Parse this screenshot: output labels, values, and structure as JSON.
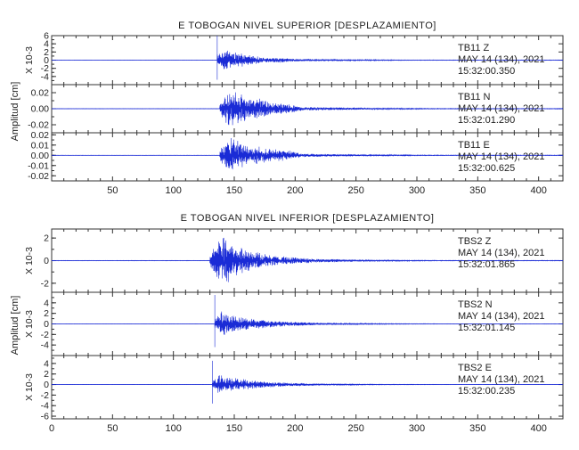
{
  "chart_data": [
    {
      "type": "line",
      "title": "E TOBOGAN NIVEL SUPERIOR [DESPLAZAMIENTO]",
      "ylabel": "Amplitud [cm]",
      "xlim": [
        0,
        420
      ],
      "x_ticks": [
        "50",
        "100",
        "150",
        "200",
        "250",
        "300",
        "350",
        "400"
      ],
      "x_tick_values": [
        50,
        100,
        150,
        200,
        250,
        300,
        350,
        400
      ],
      "traces": [
        {
          "station": "TB11",
          "component": "Z",
          "date": "MAY 14 (134), 2021",
          "time": "15:32:00.350",
          "y_multiplier": "X 10-3",
          "ylim": [
            -6,
            6
          ],
          "y_ticks": [
            "6",
            "4",
            "2",
            "0",
            "-2",
            "-4"
          ],
          "y_tick_values": [
            6,
            4,
            2,
            0,
            -2,
            -4
          ],
          "onset": 136,
          "peak": 2.8,
          "spike": 6.0,
          "decay": [
            [
              136,
              0.55
            ],
            [
              142,
              1.0
            ],
            [
              150,
              0.7
            ],
            [
              160,
              0.55
            ],
            [
              175,
              0.2
            ],
            [
              190,
              0.22
            ],
            [
              200,
              0.1
            ],
            [
              250,
              0.05
            ],
            [
              300,
              0.02
            ]
          ]
        },
        {
          "station": "TB11",
          "component": "N",
          "date": "MAY 14 (134), 2021",
          "time": "15:32:01.290",
          "y_multiplier": "",
          "ylim": [
            -0.03,
            0.03
          ],
          "y_ticks": [
            "0.02",
            "0.00",
            "-0.02"
          ],
          "y_tick_values": [
            0.02,
            0.0,
            -0.02
          ],
          "onset": 138,
          "peak": 0.025,
          "spike": 0.0,
          "decay": [
            [
              138,
              0.3
            ],
            [
              146,
              1.0
            ],
            [
              155,
              0.8
            ],
            [
              162,
              0.5
            ],
            [
              170,
              0.55
            ],
            [
              180,
              0.3
            ],
            [
              195,
              0.25
            ],
            [
              205,
              0.1
            ],
            [
              260,
              0.04
            ],
            [
              320,
              0.015
            ]
          ]
        },
        {
          "station": "TB11",
          "component": "E",
          "date": "MAY 14 (134), 2021",
          "time": "15:32:00.625",
          "y_multiplier": "",
          "ylim": [
            -0.025,
            0.022
          ],
          "y_ticks": [
            "0.02",
            "0.01",
            "0.00",
            "-0.01",
            "-0.02"
          ],
          "y_tick_values": [
            0.02,
            0.01,
            0.0,
            -0.01,
            -0.02
          ],
          "onset": 138,
          "peak": 0.018,
          "spike": 0.0,
          "decay": [
            [
              138,
              0.3
            ],
            [
              146,
              1.0
            ],
            [
              155,
              0.85
            ],
            [
              162,
              0.4
            ],
            [
              170,
              0.5
            ],
            [
              180,
              0.35
            ],
            [
              195,
              0.3
            ],
            [
              205,
              0.1
            ],
            [
              260,
              0.04
            ],
            [
              320,
              0.015
            ]
          ]
        }
      ]
    },
    {
      "type": "line",
      "title": "E TOBOGAN NIVEL INFERIOR [DESPLAZAMIENTO]",
      "ylabel": "Amplitud [cm]",
      "xlim": [
        0,
        420
      ],
      "x_ticks": [
        "0",
        "50",
        "100",
        "150",
        "200",
        "250",
        "300",
        "350",
        "400"
      ],
      "x_tick_values": [
        0,
        50,
        100,
        150,
        200,
        250,
        300,
        350,
        400
      ],
      "traces": [
        {
          "station": "TBS2",
          "component": "Z",
          "date": "MAY 14 (134), 2021",
          "time": "15:32:01.865",
          "y_multiplier": "X 10-3",
          "ylim": [
            -2.8,
            2.8
          ],
          "y_ticks": [
            "2",
            "0",
            "-2"
          ],
          "y_tick_values": [
            2,
            0,
            -2
          ],
          "onset": 130,
          "peak": 2.3,
          "spike": 0.0,
          "decay": [
            [
              130,
              0.25
            ],
            [
              136,
              0.9
            ],
            [
              142,
              1.0
            ],
            [
              150,
              0.6
            ],
            [
              165,
              0.35
            ],
            [
              185,
              0.2
            ],
            [
              215,
              0.08
            ],
            [
              260,
              0.03
            ],
            [
              320,
              0.012
            ]
          ]
        },
        {
          "station": "TBS2",
          "component": "N",
          "date": "MAY 14 (134), 2021",
          "time": "15:32:01.145",
          "y_multiplier": "X 10-3",
          "ylim": [
            -6,
            6
          ],
          "y_ticks": [
            "4",
            "2",
            "0",
            "-2",
            "-4"
          ],
          "y_tick_values": [
            4,
            2,
            0,
            -2,
            -4
          ],
          "onset": 134,
          "peak": 2.6,
          "spike": 5.5,
          "decay": [
            [
              134,
              0.3
            ],
            [
              138,
              1.0
            ],
            [
              145,
              0.7
            ],
            [
              155,
              0.5
            ],
            [
              170,
              0.35
            ],
            [
              190,
              0.2
            ],
            [
              220,
              0.08
            ],
            [
              270,
              0.03
            ],
            [
              330,
              0.012
            ]
          ]
        },
        {
          "station": "TBS2",
          "component": "E",
          "date": "MAY 14 (134), 2021",
          "time": "15:32:00.235",
          "y_multiplier": "X 10-3",
          "ylim": [
            -6.5,
            5.5
          ],
          "y_ticks": [
            "4",
            "2",
            "0",
            "-2",
            "-4",
            "-6"
          ],
          "y_tick_values": [
            4,
            2,
            0,
            -2,
            -4,
            -6
          ],
          "onset": 132,
          "peak": 2.0,
          "spike": 4.5,
          "decay": [
            [
              132,
              0.3
            ],
            [
              137,
              1.0
            ],
            [
              145,
              0.7
            ],
            [
              155,
              0.55
            ],
            [
              170,
              0.35
            ],
            [
              190,
              0.2
            ],
            [
              220,
              0.08
            ],
            [
              270,
              0.03
            ],
            [
              330,
              0.012
            ]
          ]
        }
      ]
    }
  ]
}
